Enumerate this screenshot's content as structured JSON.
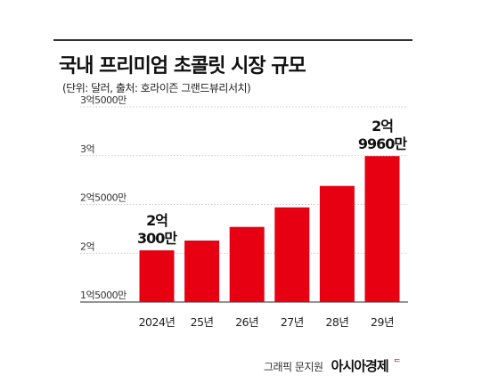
{
  "header": {
    "title": "국내 프리미엄 초콜릿 시장 규모",
    "subtitle": "(단위: 달러, 출처: 호라이즌 그랜드뷰리서치)"
  },
  "chart_data": {
    "type": "bar",
    "title": "국내 프리미엄 초콜릿 시장 규모",
    "subtitle": "(단위: 달러, 출처: 호라이즌 그랜드뷰리서치)",
    "categories": [
      "2024년",
      "25년",
      "26년",
      "27년",
      "28년",
      "29년"
    ],
    "values": [
      203000000,
      213000000,
      227000000,
      247000000,
      269000000,
      299600000
    ],
    "y_ticks": [
      {
        "value": 150000000,
        "label": "1억5000만"
      },
      {
        "value": 200000000,
        "label": "2억"
      },
      {
        "value": 250000000,
        "label": "2억5000만"
      },
      {
        "value": 300000000,
        "label": "3억"
      },
      {
        "value": 350000000,
        "label": "3억5000만"
      }
    ],
    "ylim": [
      150000000,
      350000000
    ],
    "grid": true,
    "bar_color": "#e60012",
    "annotations": [
      {
        "category_index": 0,
        "line1": "2억",
        "line2": "300만"
      },
      {
        "category_index": 5,
        "line1": "2억",
        "line2": "9960만"
      }
    ]
  },
  "footer": {
    "credit": "그래픽 문지원",
    "brand": "아시아경제",
    "brand_mark": "ᄃ",
    "brand_mark_color": "#e60012"
  }
}
